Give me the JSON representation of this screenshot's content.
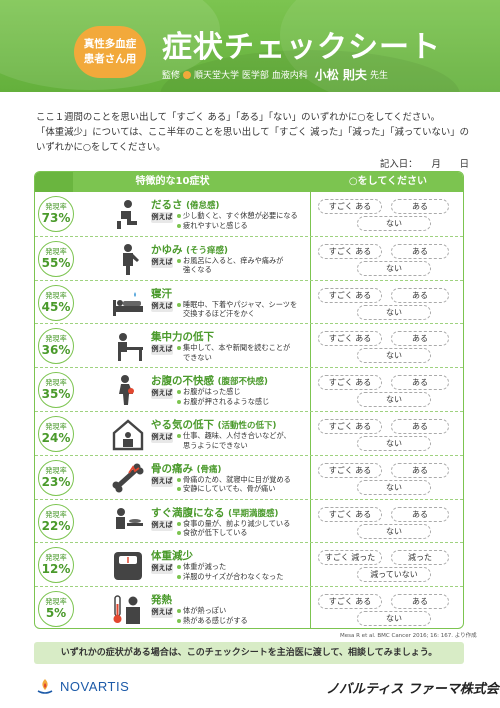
{
  "header": {
    "badge_line1": "真性多血症",
    "badge_line2": "患者さん用",
    "title": "症状チェックシート",
    "supervisor_prefix": "監修",
    "supervisor_affiliation": "順天堂大学 医学部 血液内科",
    "supervisor_name": "小松 則夫",
    "supervisor_suffix": "先生"
  },
  "instructions": {
    "line1": "ここ１週間のことを思い出して「すごく ある」「ある」「ない」のいずれかに○をしてください。",
    "line2": "「体重減少」については、ここ半年のことを思い出して「すごく 減った」「減った」「減っていない」の",
    "line3": "いずれかに○をしてください。",
    "date_label": "記入日：　　月　　日"
  },
  "table": {
    "col1_header": "特徴的な10症状",
    "col2_header": "○をしてください",
    "rate_label": "発現率",
    "example_label": "例えば",
    "rows": [
      {
        "rate": "73%",
        "name": "だるさ",
        "sub": "(倦怠感)",
        "lines": [
          "少し動くと、すぐ休憩が必要になる",
          "疲れやすいと感じる"
        ],
        "opts": [
          "すごく ある",
          "ある",
          "ない"
        ]
      },
      {
        "rate": "55%",
        "name": "かゆみ",
        "sub": "(そう痒感)",
        "lines": [
          "お風呂に入ると、痒みや痛みが",
          "強くなる"
        ],
        "opts": [
          "すごく ある",
          "ある",
          "ない"
        ]
      },
      {
        "rate": "45%",
        "name": "寝汗",
        "sub": "",
        "lines": [
          "睡眠中、下着やパジャマ、シーツを",
          "交換するほど汗をかく"
        ],
        "opts": [
          "すごく ある",
          "ある",
          "ない"
        ]
      },
      {
        "rate": "36%",
        "name": "集中力の低下",
        "sub": "",
        "lines": [
          "集中して、本や新聞を読むことが",
          "できない"
        ],
        "opts": [
          "すごく ある",
          "ある",
          "ない"
        ]
      },
      {
        "rate": "35%",
        "name": "お腹の不快感",
        "sub": "(腹部不快感)",
        "lines": [
          "お腹がはった感じ",
          "お腹が押されるような感じ"
        ],
        "opts": [
          "すごく ある",
          "ある",
          "ない"
        ]
      },
      {
        "rate": "24%",
        "name": "やる気の低下",
        "sub": "(活動性の低下)",
        "lines": [
          "仕事、趣味、人付き合いなどが、",
          "思うようにできない"
        ],
        "opts": [
          "すごく ある",
          "ある",
          "ない"
        ]
      },
      {
        "rate": "23%",
        "name": "骨の痛み",
        "sub": "(骨痛)",
        "lines": [
          "骨痛のため、就寝中に目が覚める",
          "安静にしていても、骨が痛い"
        ],
        "opts": [
          "すごく ある",
          "ある",
          "ない"
        ]
      },
      {
        "rate": "22%",
        "name": "すぐ満腹になる",
        "sub": "(早期満腹感)",
        "lines": [
          "食事の量が、前より減少している",
          "食欲が低下している"
        ],
        "opts": [
          "すごく ある",
          "ある",
          "ない"
        ]
      },
      {
        "rate": "12%",
        "name": "体重減少",
        "sub": "",
        "lines": [
          "体重が減った",
          "洋服のサイズが合わなくなった"
        ],
        "opts": [
          "すごく 減った",
          "減った",
          "減っていない"
        ]
      },
      {
        "rate": "5%",
        "name": "発熱",
        "sub": "",
        "lines": [
          "体が熱っぽい",
          "熱がある感じがする"
        ],
        "opts": [
          "すごく ある",
          "ある",
          "ない"
        ]
      }
    ]
  },
  "source": "Mesa R et al. BMC Cancer 2016; 16: 167. より作成",
  "footer_note": "いずれかの症状がある場合は、このチェックシートを主治医に渡して、相談してみましょう。",
  "brand": "NOVARTIS",
  "company": "ノバルティス ファーマ株式会社",
  "colors": {
    "accent": "#7cc450",
    "dark_green": "#4a9a2b",
    "orange": "#f2a93b",
    "novartis_blue": "#1c5aa8"
  }
}
